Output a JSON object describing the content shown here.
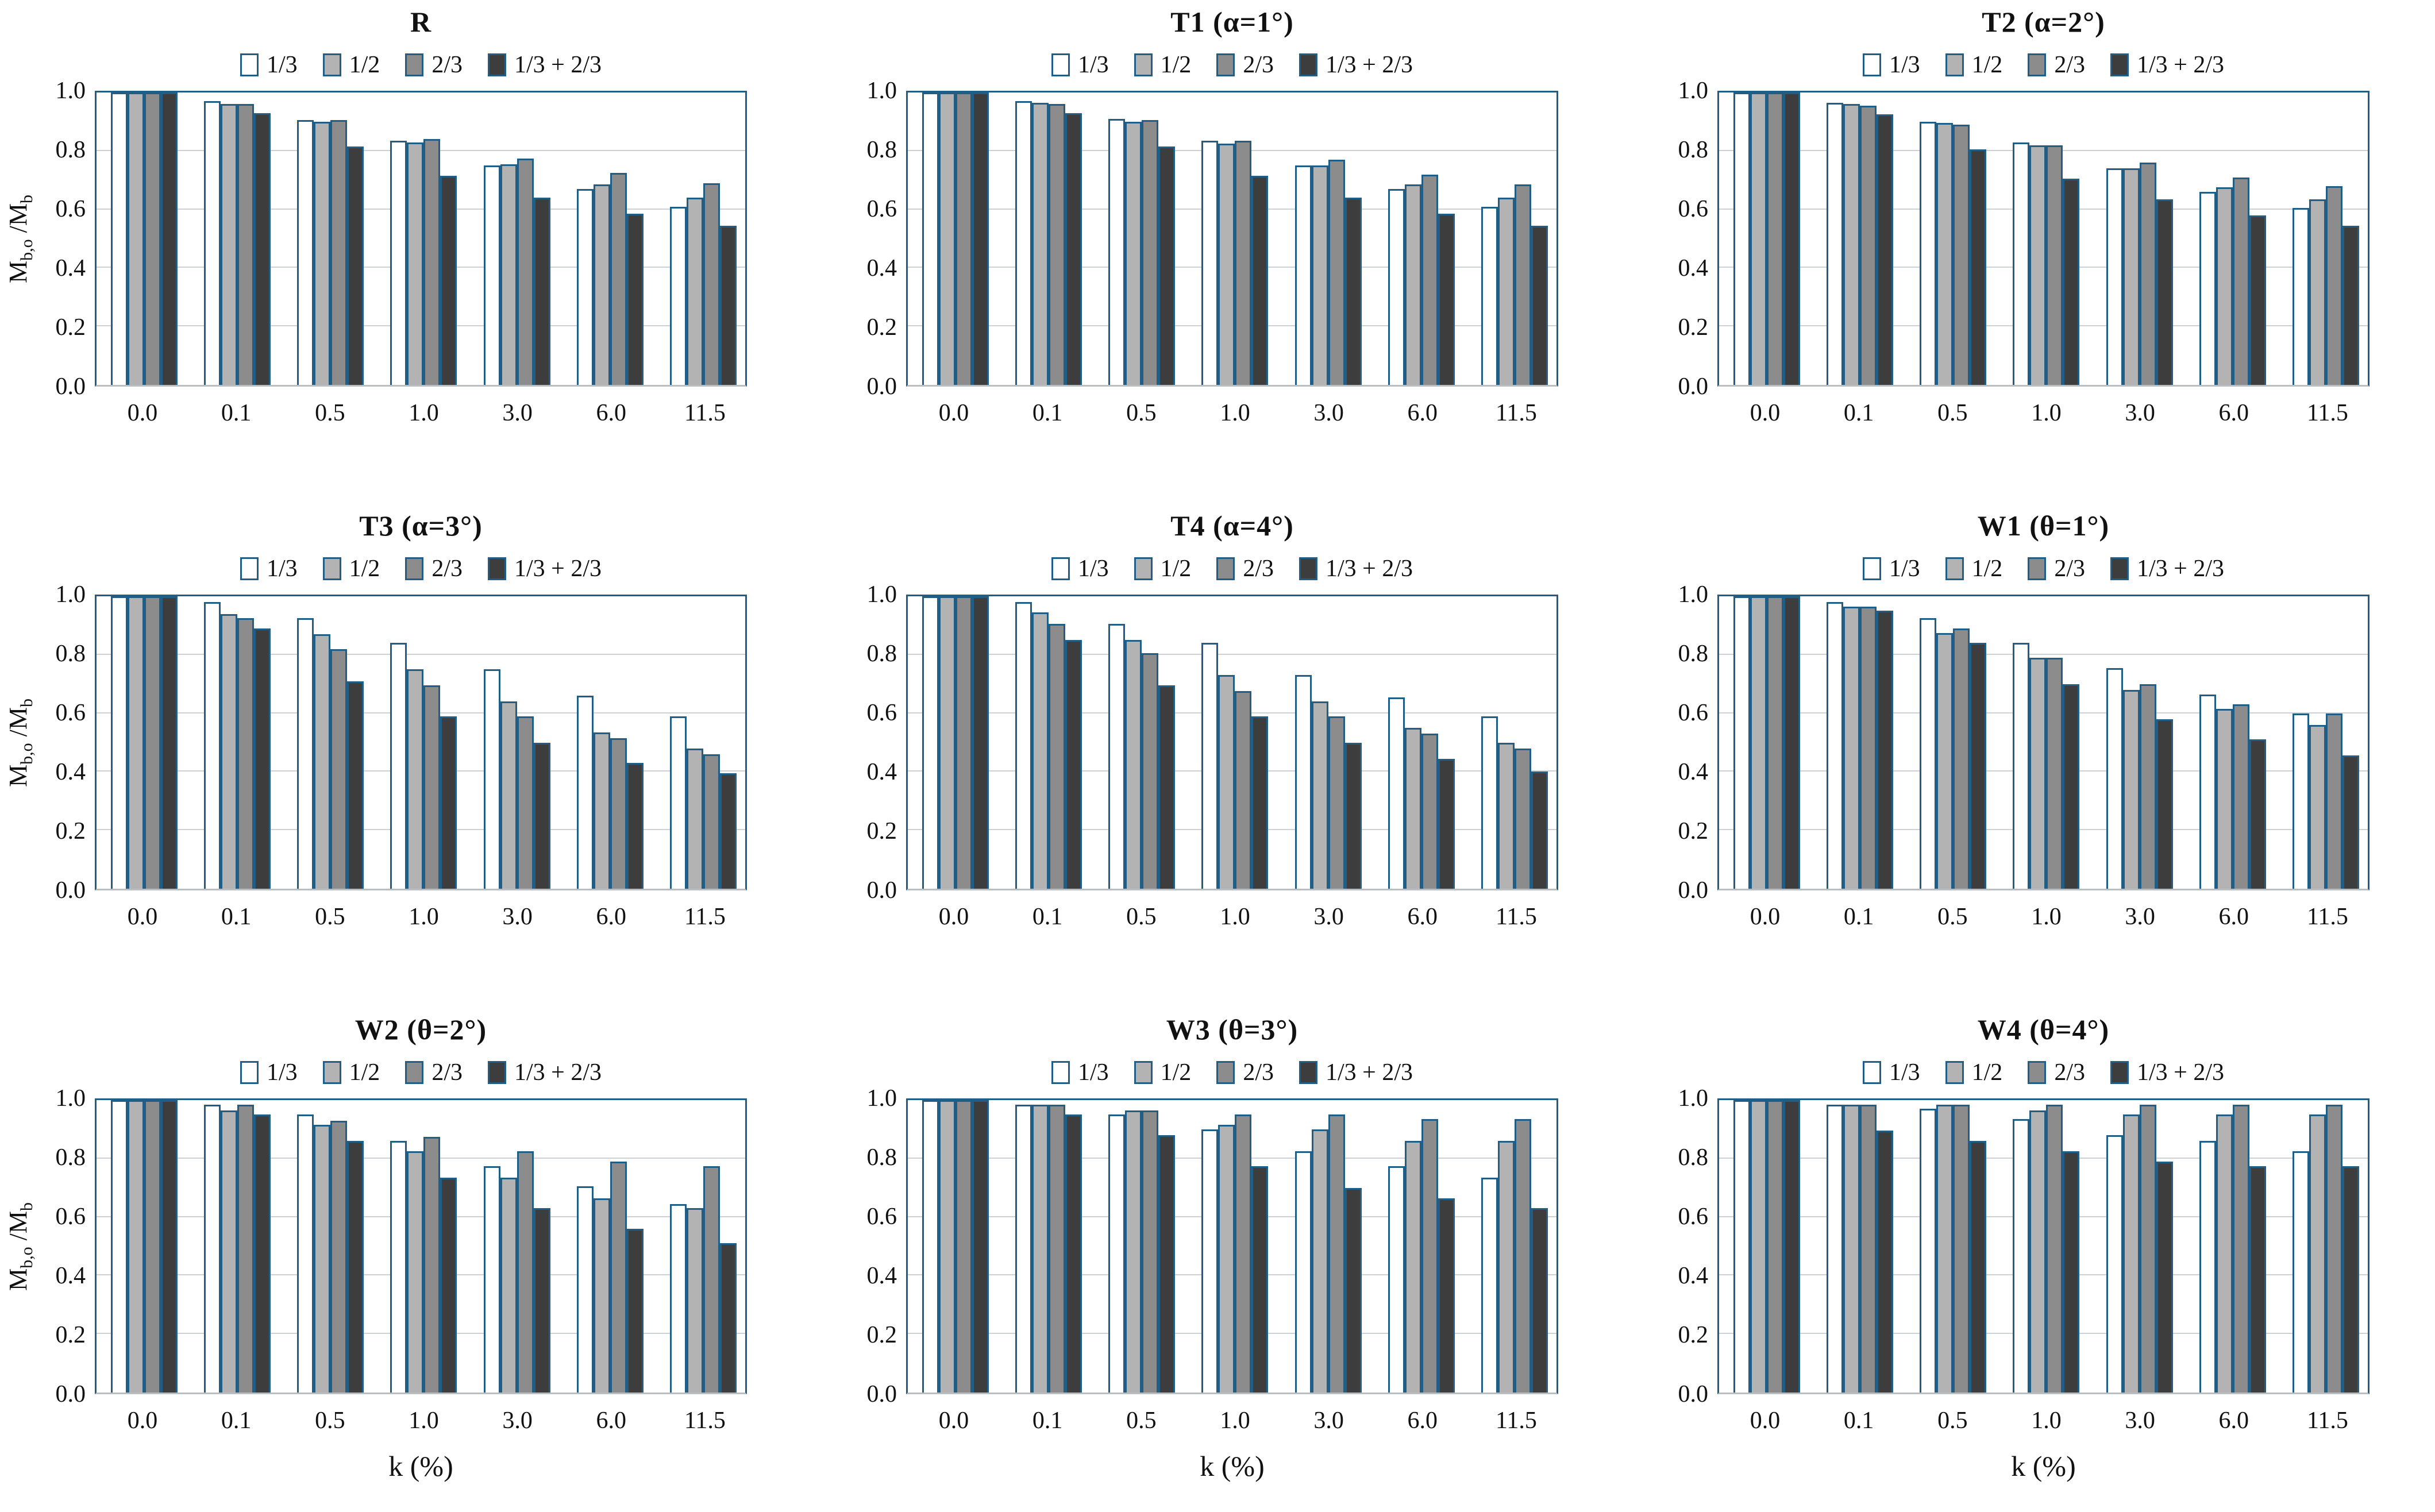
{
  "labels": {
    "xlabel": "k (%)",
    "ylabel": {
      "m1": "M",
      "s1": "b,o",
      "m2": "/M",
      "s2": "b"
    }
  },
  "axes": {
    "yticks": [
      "1.0",
      "0.8",
      "0.6",
      "0.4",
      "0.2",
      "0.0"
    ],
    "ylim": [
      0.0,
      1.0
    ],
    "grid": "horizontal"
  },
  "colors": {
    "bar_border": "#205e86",
    "frame": "#205e86",
    "axis_bottom": "#b9bec3",
    "gridline": "#ccd1d6",
    "fill_1_3": "#ffffff",
    "fill_1_2": "#b3b3b3",
    "fill_2_3": "#8c8c8c",
    "fill_combo": "#3d3d3d"
  },
  "legend": {
    "position": "top-center",
    "items": [
      {
        "label": "1/3",
        "fill": "#ffffff",
        "icon": "legend-swatch-white"
      },
      {
        "label": "1/2",
        "fill": "#b3b3b3",
        "icon": "legend-swatch-lightgray"
      },
      {
        "label": "2/3",
        "fill": "#8c8c8c",
        "icon": "legend-swatch-gray"
      },
      {
        "label": "1/3 + 2/3",
        "fill": "#3d3d3d",
        "icon": "legend-swatch-dark"
      }
    ]
  },
  "chart_data": [
    {
      "type": "bar",
      "title": "R",
      "xlabel": "k (%)",
      "ylabel": "Mb,o/Mb",
      "ylim": [
        0.0,
        1.0
      ],
      "categories": [
        "0.0",
        "0.1",
        "0.5",
        "1.0",
        "3.0",
        "6.0",
        "11.5"
      ],
      "series": [
        {
          "name": "1/3",
          "values": [
            1.0,
            0.97,
            0.905,
            0.835,
            0.75,
            0.67,
            0.61
          ]
        },
        {
          "name": "1/2",
          "values": [
            1.0,
            0.96,
            0.9,
            0.83,
            0.755,
            0.685,
            0.64
          ]
        },
        {
          "name": "2/3",
          "values": [
            1.0,
            0.96,
            0.905,
            0.84,
            0.775,
            0.725,
            0.69
          ]
        },
        {
          "name": "1/3 + 2/3",
          "values": [
            1.0,
            0.93,
            0.815,
            0.715,
            0.64,
            0.585,
            0.545
          ]
        }
      ]
    },
    {
      "type": "bar",
      "title": "T1 (α=1°)",
      "xlabel": "k (%)",
      "ylabel": "Mb,o/Mb",
      "ylim": [
        0.0,
        1.0
      ],
      "categories": [
        "0.0",
        "0.1",
        "0.5",
        "1.0",
        "3.0",
        "6.0",
        "11.5"
      ],
      "series": [
        {
          "name": "1/3",
          "values": [
            1.0,
            0.97,
            0.91,
            0.835,
            0.75,
            0.67,
            0.61
          ]
        },
        {
          "name": "1/2",
          "values": [
            1.0,
            0.965,
            0.9,
            0.825,
            0.75,
            0.685,
            0.64
          ]
        },
        {
          "name": "2/3",
          "values": [
            1.0,
            0.96,
            0.905,
            0.835,
            0.77,
            0.72,
            0.685
          ]
        },
        {
          "name": "1/3 + 2/3",
          "values": [
            1.0,
            0.93,
            0.815,
            0.715,
            0.64,
            0.585,
            0.545
          ]
        }
      ]
    },
    {
      "type": "bar",
      "title": "T2 (α=2°)",
      "xlabel": "k (%)",
      "ylabel": "Mb,o/Mb",
      "ylim": [
        0.0,
        1.0
      ],
      "categories": [
        "0.0",
        "0.1",
        "0.5",
        "1.0",
        "3.0",
        "6.0",
        "11.5"
      ],
      "series": [
        {
          "name": "1/3",
          "values": [
            1.0,
            0.965,
            0.9,
            0.83,
            0.74,
            0.66,
            0.605
          ]
        },
        {
          "name": "1/2",
          "values": [
            1.0,
            0.96,
            0.895,
            0.82,
            0.74,
            0.675,
            0.635
          ]
        },
        {
          "name": "2/3",
          "values": [
            1.0,
            0.955,
            0.89,
            0.82,
            0.76,
            0.71,
            0.68
          ]
        },
        {
          "name": "1/3 + 2/3",
          "values": [
            1.0,
            0.925,
            0.805,
            0.705,
            0.635,
            0.58,
            0.545
          ]
        }
      ]
    },
    {
      "type": "bar",
      "title": "T3 (α=3°)",
      "xlabel": "k (%)",
      "ylabel": "Mb,o/Mb",
      "ylim": [
        0.0,
        1.0
      ],
      "categories": [
        "0.0",
        "0.1",
        "0.5",
        "1.0",
        "3.0",
        "6.0",
        "11.5"
      ],
      "series": [
        {
          "name": "1/3",
          "values": [
            1.0,
            0.98,
            0.925,
            0.84,
            0.75,
            0.66,
            0.59
          ]
        },
        {
          "name": "1/2",
          "values": [
            1.0,
            0.94,
            0.87,
            0.75,
            0.64,
            0.535,
            0.48
          ]
        },
        {
          "name": "2/3",
          "values": [
            1.0,
            0.925,
            0.82,
            0.695,
            0.59,
            0.515,
            0.46
          ]
        },
        {
          "name": "1/3 + 2/3",
          "values": [
            1.0,
            0.89,
            0.71,
            0.59,
            0.5,
            0.43,
            0.395
          ]
        }
      ]
    },
    {
      "type": "bar",
      "title": "T4 (α=4°)",
      "xlabel": "k (%)",
      "ylabel": "Mb,o/Mb",
      "ylim": [
        0.0,
        1.0
      ],
      "categories": [
        "0.0",
        "0.1",
        "0.5",
        "1.0",
        "3.0",
        "6.0",
        "11.5"
      ],
      "series": [
        {
          "name": "1/3",
          "values": [
            1.0,
            0.98,
            0.905,
            0.84,
            0.73,
            0.655,
            0.59
          ]
        },
        {
          "name": "1/2",
          "values": [
            1.0,
            0.945,
            0.85,
            0.73,
            0.64,
            0.55,
            0.5
          ]
        },
        {
          "name": "2/3",
          "values": [
            1.0,
            0.905,
            0.805,
            0.675,
            0.59,
            0.53,
            0.48
          ]
        },
        {
          "name": "1/3 + 2/3",
          "values": [
            1.0,
            0.85,
            0.695,
            0.59,
            0.5,
            0.445,
            0.4
          ]
        }
      ]
    },
    {
      "type": "bar",
      "title": "W1 (θ=1°)",
      "xlabel": "k (%)",
      "ylabel": "Mb,o/Mb",
      "ylim": [
        0.0,
        1.0
      ],
      "categories": [
        "0.0",
        "0.1",
        "0.5",
        "1.0",
        "3.0",
        "6.0",
        "11.5"
      ],
      "series": [
        {
          "name": "1/3",
          "values": [
            1.0,
            0.98,
            0.925,
            0.84,
            0.755,
            0.665,
            0.6
          ]
        },
        {
          "name": "1/2",
          "values": [
            1.0,
            0.965,
            0.875,
            0.79,
            0.68,
            0.615,
            0.56
          ]
        },
        {
          "name": "2/3",
          "values": [
            1.0,
            0.965,
            0.89,
            0.79,
            0.7,
            0.63,
            0.6
          ]
        },
        {
          "name": "1/3 + 2/3",
          "values": [
            1.0,
            0.95,
            0.84,
            0.7,
            0.58,
            0.51,
            0.455
          ]
        }
      ]
    },
    {
      "type": "bar",
      "title": "W2 (θ=2°)",
      "xlabel": "k (%)",
      "ylabel": "Mb,o/Mb",
      "ylim": [
        0.0,
        1.0
      ],
      "categories": [
        "0.0",
        "0.1",
        "0.5",
        "1.0",
        "3.0",
        "6.0",
        "11.5"
      ],
      "series": [
        {
          "name": "1/3",
          "values": [
            1.0,
            0.985,
            0.95,
            0.86,
            0.775,
            0.705,
            0.645
          ]
        },
        {
          "name": "1/2",
          "values": [
            1.0,
            0.965,
            0.915,
            0.825,
            0.735,
            0.665,
            0.63
          ]
        },
        {
          "name": "2/3",
          "values": [
            1.0,
            0.985,
            0.93,
            0.875,
            0.825,
            0.79,
            0.775
          ]
        },
        {
          "name": "1/3 + 2/3",
          "values": [
            1.0,
            0.95,
            0.86,
            0.735,
            0.63,
            0.56,
            0.51
          ]
        }
      ]
    },
    {
      "type": "bar",
      "title": "W3 (θ=3°)",
      "xlabel": "k (%)",
      "ylabel": "Mb,o/Mb",
      "ylim": [
        0.0,
        1.0
      ],
      "categories": [
        "0.0",
        "0.1",
        "0.5",
        "1.0",
        "3.0",
        "6.0",
        "11.5"
      ],
      "series": [
        {
          "name": "1/3",
          "values": [
            1.0,
            0.985,
            0.95,
            0.9,
            0.825,
            0.775,
            0.735
          ]
        },
        {
          "name": "1/2",
          "values": [
            1.0,
            0.985,
            0.965,
            0.915,
            0.9,
            0.86,
            0.86
          ]
        },
        {
          "name": "2/3",
          "values": [
            1.0,
            0.985,
            0.965,
            0.95,
            0.95,
            0.935,
            0.935
          ]
        },
        {
          "name": "1/3 + 2/3",
          "values": [
            1.0,
            0.95,
            0.88,
            0.775,
            0.7,
            0.665,
            0.63
          ]
        }
      ]
    },
    {
      "type": "bar",
      "title": "W4 (θ=4°)",
      "xlabel": "k (%)",
      "ylabel": "Mb,o/Mb",
      "ylim": [
        0.0,
        1.0
      ],
      "categories": [
        "0.0",
        "0.1",
        "0.5",
        "1.0",
        "3.0",
        "6.0",
        "11.5"
      ],
      "series": [
        {
          "name": "1/3",
          "values": [
            1.0,
            0.985,
            0.97,
            0.935,
            0.88,
            0.86,
            0.825
          ]
        },
        {
          "name": "1/2",
          "values": [
            1.0,
            0.985,
            0.985,
            0.965,
            0.95,
            0.95,
            0.95
          ]
        },
        {
          "name": "2/3",
          "values": [
            1.0,
            0.985,
            0.985,
            0.985,
            0.985,
            0.985,
            0.985
          ]
        },
        {
          "name": "1/3 + 2/3",
          "values": [
            1.0,
            0.895,
            0.86,
            0.825,
            0.79,
            0.775,
            0.775
          ]
        }
      ]
    }
  ]
}
